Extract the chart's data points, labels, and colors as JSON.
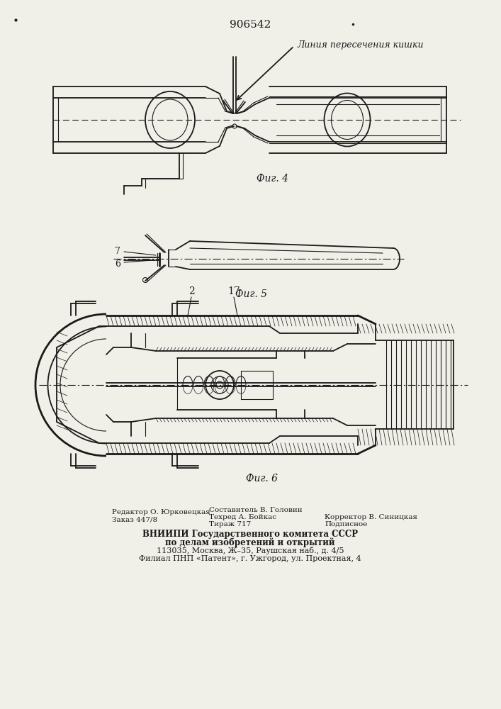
{
  "patent_number": "906542",
  "bg_color": "#f0efe8",
  "line_color": "#1a1a1a",
  "fig4_caption": "Фиг. 4",
  "fig5_caption": "Фиг. 5",
  "fig6_caption": "Фиг. 6",
  "annotation_text": "Линия пересечения кишки",
  "label_7": "7",
  "label_6": "6",
  "label_2": "2",
  "label_17": "17",
  "footer_left_line1": "Редактор О. Юрковецкая",
  "footer_left_line2": "Заказ 447/8",
  "footer_center_line1": "Составитель В. Головин",
  "footer_center_line2": "Техред А. Бойкас",
  "footer_center_line3": "Тираж 717",
  "footer_right_line1": "Корректор В. Синицкая",
  "footer_right_line2": "Подписное",
  "footer_bold_line1": "ВНИИПИ Государственного комитета СССР",
  "footer_bold_line2": "по делам изобретений и открытий",
  "footer_line3": "113035, Москва, Ж–35, Раушская наб., д. 4/5",
  "footer_line4": "Филиал ПНП «Патент», г. Ужгород, ул. Проектная, 4"
}
